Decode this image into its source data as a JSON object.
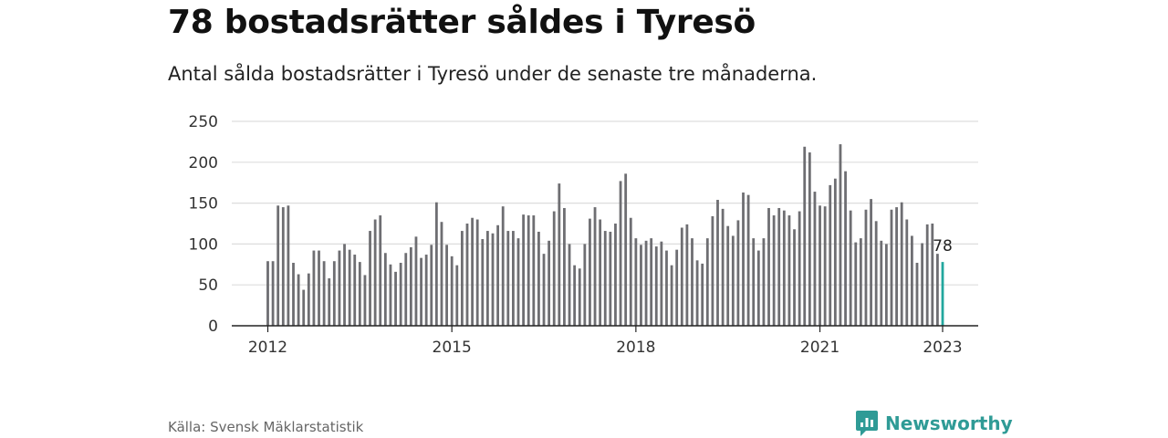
{
  "header": {
    "title": "78 bostadsrätter såldes i Tyresö",
    "subtitle": "Antal sålda bostadsrätter i Tyresö under de senaste tre månaderna."
  },
  "footer": {
    "source": "Källa: Svensk Mäklarstatistik",
    "brand": "Newsworthy",
    "brand_icon": "newsworthy-logo-icon"
  },
  "colors": {
    "bar": "#6e6e72",
    "highlight": "#22a79e",
    "grid": "#dddddd",
    "axis": "#222222",
    "brand": "#2f9b96"
  },
  "chart_data": {
    "type": "bar",
    "title": "78 bostadsrätter såldes i Tyresö",
    "subtitle": "Antal sålda bostadsrätter i Tyresö under de senaste tre månaderna.",
    "xlabel": "",
    "ylabel": "",
    "ylim": [
      0,
      250
    ],
    "yticks": [
      0,
      50,
      100,
      150,
      200,
      250
    ],
    "grid": true,
    "start": "2012-01",
    "end": "2023-01",
    "x_ticks": [
      "2012",
      "2015",
      "2018",
      "2021",
      "2023"
    ],
    "highlight_label": "78",
    "values": [
      79,
      79,
      147,
      145,
      147,
      77,
      63,
      44,
      64,
      92,
      92,
      79,
      58,
      79,
      92,
      100,
      93,
      87,
      78,
      62,
      116,
      130,
      135,
      89,
      75,
      66,
      77,
      89,
      96,
      109,
      83,
      87,
      99,
      151,
      127,
      99,
      85,
      74,
      116,
      125,
      132,
      130,
      106,
      116,
      113,
      123,
      146,
      116,
      116,
      107,
      136,
      135,
      135,
      115,
      88,
      104,
      140,
      174,
      144,
      100,
      74,
      70,
      100,
      131,
      145,
      130,
      116,
      115,
      125,
      177,
      186,
      132,
      107,
      99,
      104,
      107,
      97,
      103,
      92,
      74,
      93,
      120,
      124,
      107,
      80,
      76,
      107,
      134,
      154,
      143,
      122,
      110,
      129,
      163,
      160,
      107,
      92,
      107,
      144,
      135,
      144,
      141,
      135,
      118,
      140,
      219,
      212,
      164,
      147,
      146,
      172,
      180,
      222,
      189,
      141,
      102,
      107,
      142,
      155,
      128,
      104,
      100,
      142,
      145,
      151,
      130,
      110,
      77,
      101,
      124,
      125,
      88,
      78
    ]
  }
}
